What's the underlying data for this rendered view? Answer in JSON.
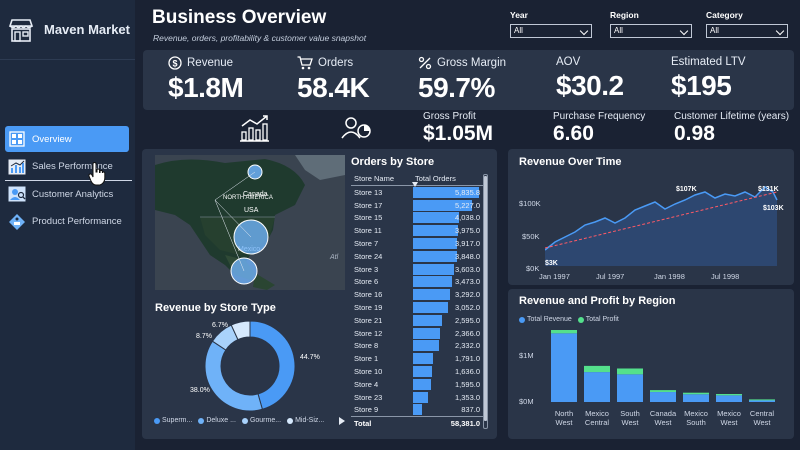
{
  "brand": {
    "name": "Maven Market",
    "icon": "storefront-icon"
  },
  "nav": [
    {
      "label": "Overview",
      "icon": "grid-icon",
      "active": true
    },
    {
      "label": "Sales Performance",
      "icon": "bar-chart-icon"
    },
    {
      "label": "Customer Analytics",
      "icon": "user-search-icon"
    },
    {
      "label": "Product Performance",
      "icon": "tag-icon"
    }
  ],
  "header": {
    "title": "Business Overview",
    "subtitle": "Revenue, orders, profitability & customer value snapshot"
  },
  "filters": [
    {
      "label": "Year",
      "value": "All"
    },
    {
      "label": "Region",
      "value": "All"
    },
    {
      "label": "Category",
      "value": "All"
    }
  ],
  "kpis": [
    {
      "label": "Revenue",
      "value": "$1.8M",
      "icon": "dollar-circle-icon"
    },
    {
      "label": "Orders",
      "value": "58.4K",
      "icon": "cart-icon"
    },
    {
      "label": "Gross Margin",
      "value": "59.7%",
      "icon": "percent-icon"
    },
    {
      "label": "AOV",
      "value": "$30.2"
    },
    {
      "label": "Estimated LTV",
      "value": "$195"
    }
  ],
  "kpis2": [
    {
      "label": "Gross Profit",
      "value": "$1.05M"
    },
    {
      "label": "Purchase Frequency",
      "value": "6.60"
    },
    {
      "label": "Customer Lifetime (years)",
      "value": "0.98"
    }
  ],
  "map": {
    "labels": [
      "NORTH AMERICA",
      "Canada",
      "USA",
      "Mexico"
    ],
    "watermark": "Atl"
  },
  "orders_table": {
    "title": "Orders by Store",
    "col_store": "Store Name",
    "col_orders": "Total Orders",
    "rows": [
      {
        "store": "Store 13",
        "orders": "5,835.8",
        "value": 5835.8
      },
      {
        "store": "Store 17",
        "orders": "5,227.0",
        "value": 5227.0
      },
      {
        "store": "Store 15",
        "orders": "4,038.0",
        "value": 4038.0
      },
      {
        "store": "Store 11",
        "orders": "3,975.0",
        "value": 3975.0
      },
      {
        "store": "Store 7",
        "orders": "3,917.0",
        "value": 3917.0
      },
      {
        "store": "Store 24",
        "orders": "3,848.0",
        "value": 3848.0
      },
      {
        "store": "Store 3",
        "orders": "3,603.0",
        "value": 3603.0
      },
      {
        "store": "Store 6",
        "orders": "3,473.0",
        "value": 3473.0
      },
      {
        "store": "Store 16",
        "orders": "3,292.0",
        "value": 3292.0
      },
      {
        "store": "Store 19",
        "orders": "3,052.0",
        "value": 3052.0
      },
      {
        "store": "Store 21",
        "orders": "2,595.0",
        "value": 2595.0
      },
      {
        "store": "Store 12",
        "orders": "2,366.0",
        "value": 2366.0
      },
      {
        "store": "Store 8",
        "orders": "2,332.0",
        "value": 2332.0
      },
      {
        "store": "Store 1",
        "orders": "1,791.0",
        "value": 1791.0
      },
      {
        "store": "Store 10",
        "orders": "1,636.0",
        "value": 1636.0
      },
      {
        "store": "Store 4",
        "orders": "1,595.0",
        "value": 1595.0
      },
      {
        "store": "Store 23",
        "orders": "1,353.0",
        "value": 1353.0
      },
      {
        "store": "Store 9",
        "orders": "837.0",
        "value": 837.0
      }
    ],
    "total_label": "Total",
    "total_value": "58,381.0"
  },
  "store_type": {
    "title": "Revenue by Store Type",
    "slices": [
      {
        "name": "Superm...",
        "label": "44.7%",
        "value": 44.7,
        "color": "#4a9af5"
      },
      {
        "name": "Deluxe ...",
        "label": "38.0%",
        "value": 38.0,
        "color": "#6fb2f8"
      },
      {
        "name": "Gourme...",
        "label": "8.7%",
        "value": 8.7,
        "color": "#a9d2fb"
      },
      {
        "name": "Mid-Siz...",
        "label": "6.7%",
        "value": 6.7,
        "color": "#d6e9fd"
      }
    ]
  },
  "revenue_time": {
    "title": "Revenue Over Time",
    "y_ticks": [
      "$100K",
      "$50K",
      "$0K"
    ],
    "x_ticks": [
      "Jan 1997",
      "Jul 1997",
      "Jan 1998",
      "Jul 1998"
    ],
    "annotations": [
      "$3K",
      "$107K",
      "$131K",
      "$103K"
    ]
  },
  "region_chart": {
    "title": "Revenue and Profit by Region",
    "legend": [
      {
        "name": "Total Revenue",
        "color": "#4a9af5"
      },
      {
        "name": "Total Profit",
        "color": "#54e08c"
      }
    ],
    "y_ticks": [
      "$1M",
      "$0M"
    ],
    "regions": [
      {
        "line1": "North",
        "line2": "West",
        "revenue": 0.62,
        "profit": 0.37
      },
      {
        "line1": "Mexico",
        "line2": "Central",
        "revenue": 0.27,
        "profit": 0.16
      },
      {
        "line1": "South",
        "line2": "West",
        "revenue": 0.25,
        "profit": 0.15
      },
      {
        "line1": "Canada",
        "line2": "West",
        "revenue": 0.09,
        "profit": 0.05
      },
      {
        "line1": "Mexico",
        "line2": "South",
        "revenue": 0.07,
        "profit": 0.04
      },
      {
        "line1": "Mexico",
        "line2": "West",
        "revenue": 0.06,
        "profit": 0.035
      },
      {
        "line1": "Central",
        "line2": "West",
        "revenue": 0.02,
        "profit": 0.01
      }
    ]
  }
}
